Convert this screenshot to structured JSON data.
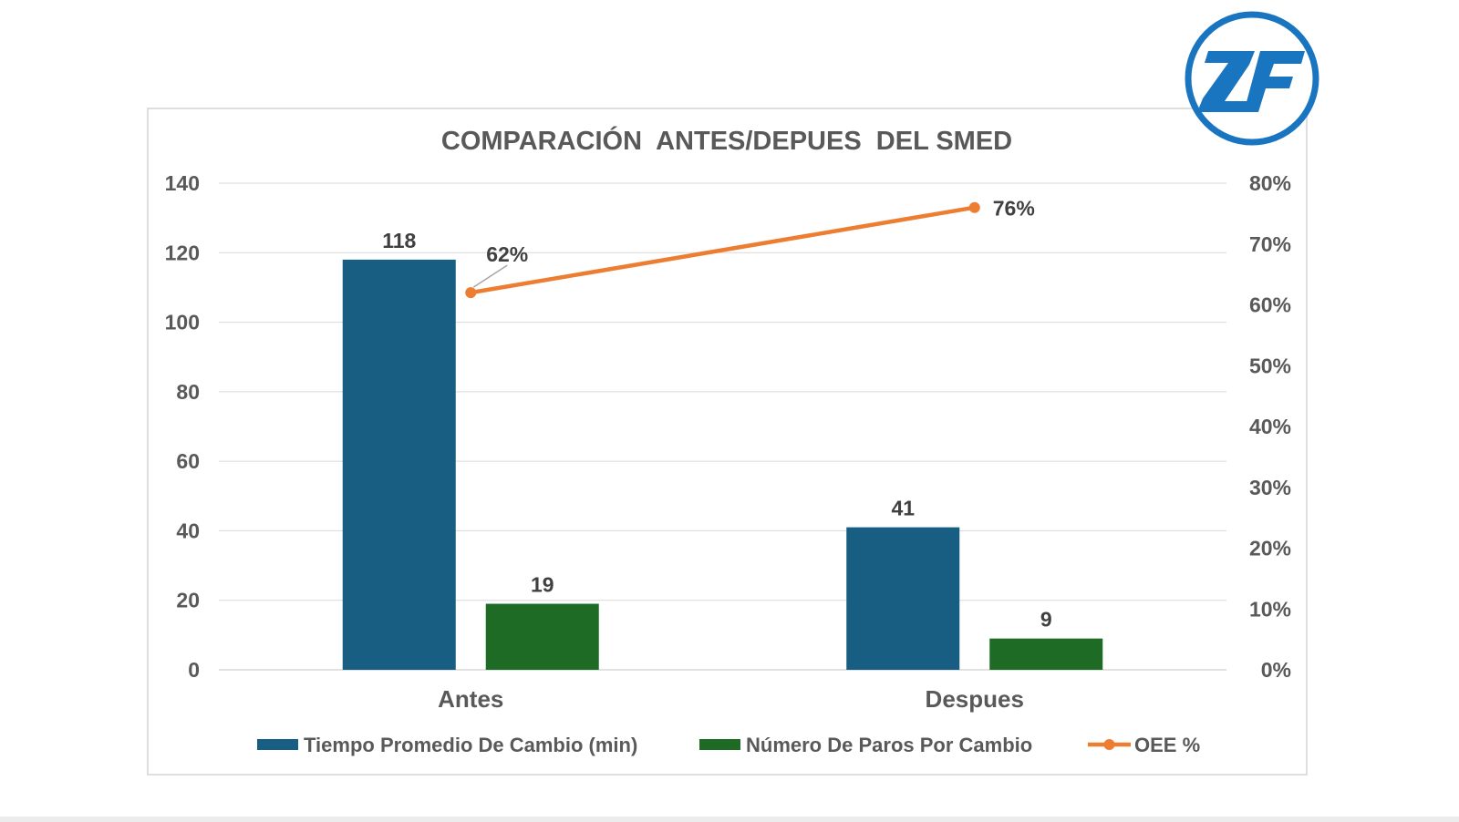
{
  "logo": {
    "text": "ZF",
    "color": "#1a75c0"
  },
  "colors": {
    "tiempo": "#175e82",
    "paros": "#1e6b26",
    "oee": "#ed7d31",
    "axis_text": "#595959",
    "label_text": "#404040",
    "grid": "#d9d9d9",
    "frame": "#d4d4d4"
  },
  "chart_data": {
    "type": "bar",
    "title": "COMPARACIÓN  ANTES/DEPUES  DEL SMED",
    "categories": [
      "Antes",
      "Despues"
    ],
    "series": [
      {
        "name": "Tiempo Promedio De Cambio (min)",
        "type": "bar",
        "axis": "left",
        "values": [
          118,
          41
        ],
        "labels": [
          "118",
          "41"
        ]
      },
      {
        "name": "Número De Paros Por Cambio",
        "type": "bar",
        "axis": "left",
        "values": [
          19,
          9
        ],
        "labels": [
          "19",
          "9"
        ]
      },
      {
        "name": "OEE %",
        "type": "line",
        "axis": "right",
        "values": [
          62,
          76
        ],
        "labels": [
          "62%",
          "76%"
        ]
      }
    ],
    "y_left": {
      "min": 0,
      "max": 140,
      "ticks": [
        "0",
        "20",
        "40",
        "60",
        "80",
        "100",
        "120",
        "140"
      ]
    },
    "y_right": {
      "min": 0,
      "max": 80,
      "ticks": [
        "0%",
        "10%",
        "20%",
        "30%",
        "40%",
        "50%",
        "60%",
        "70%",
        "80%"
      ]
    },
    "grid": true,
    "legend_position": "bottom"
  }
}
